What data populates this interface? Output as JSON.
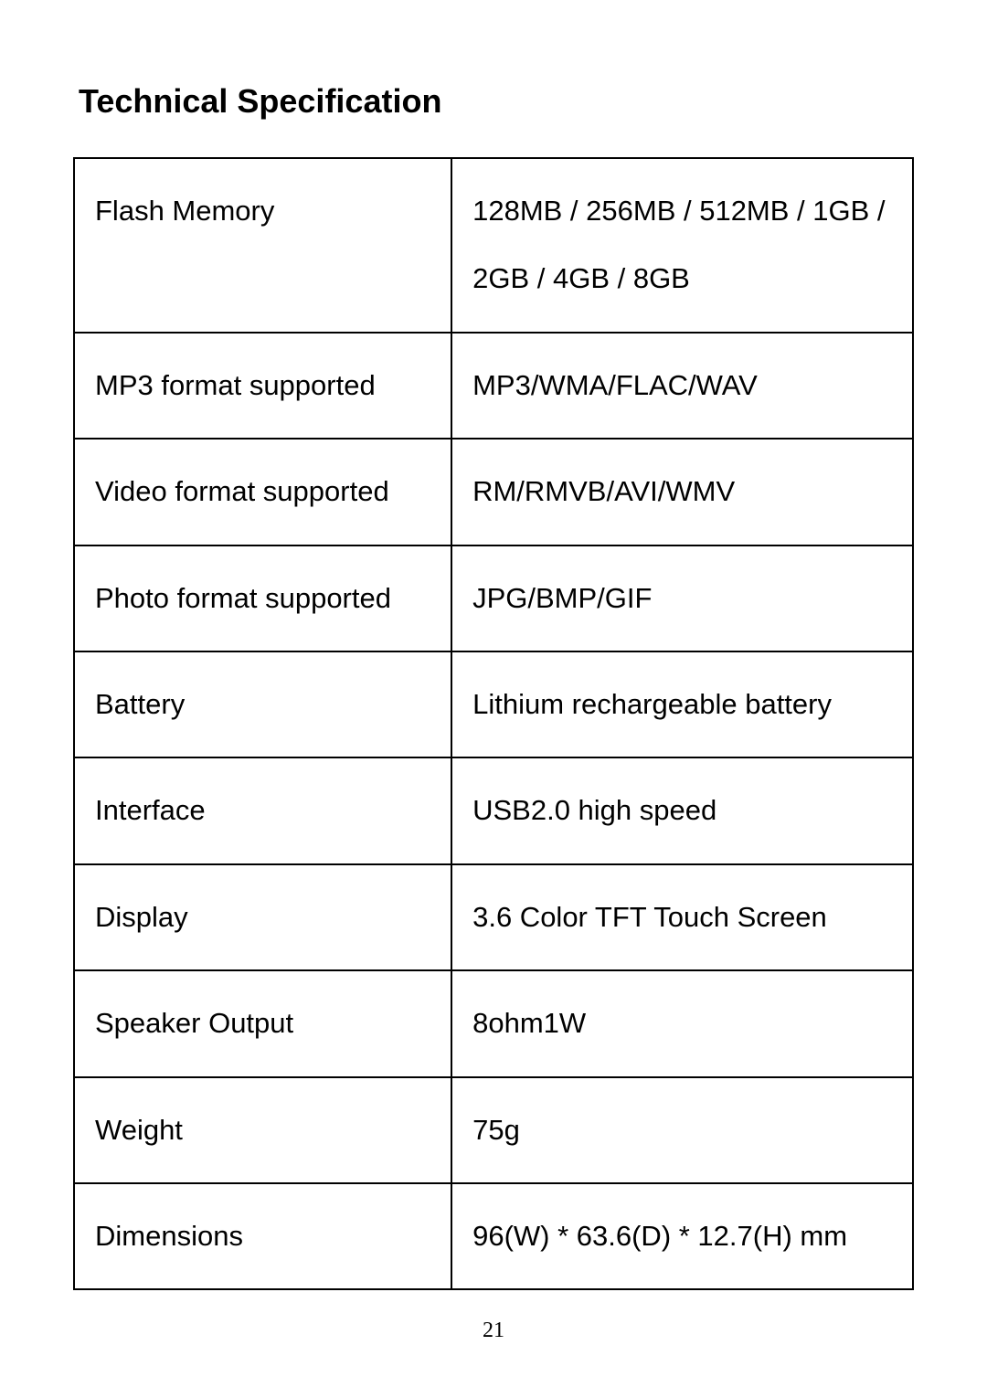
{
  "title": "Technical Specification",
  "page_number": "21",
  "table": {
    "type": "table",
    "border_color": "#000000",
    "border_width": 2,
    "background_color": "#ffffff",
    "text_color": "#000000",
    "font_size_pt": 23,
    "title_font_size_pt": 27,
    "title_font_weight": "bold",
    "column_widths_pct": [
      45,
      55
    ],
    "rows": [
      {
        "label": "Flash Memory",
        "value": "128MB / 256MB / 512MB / 1GB / 2GB / 4GB / 8GB"
      },
      {
        "label": "MP3 format supported",
        "value": "MP3/WMA/FLAC/WAV"
      },
      {
        "label": "Video format supported",
        "value": "RM/RMVB/AVI/WMV"
      },
      {
        "label": "Photo format supported",
        "value": "JPG/BMP/GIF"
      },
      {
        "label": "Battery",
        "value": "Lithium rechargeable battery"
      },
      {
        "label": "Interface",
        "value": "USB2.0 high speed"
      },
      {
        "label": "Display",
        "value": "3.6  Color TFT Touch Screen"
      },
      {
        "label": "Speaker Output",
        "value": "8ohm1W"
      },
      {
        "label": "Weight",
        "value": "75g"
      },
      {
        "label": "Dimensions",
        "value": "96(W) * 63.6(D) * 12.7(H) mm"
      }
    ]
  }
}
